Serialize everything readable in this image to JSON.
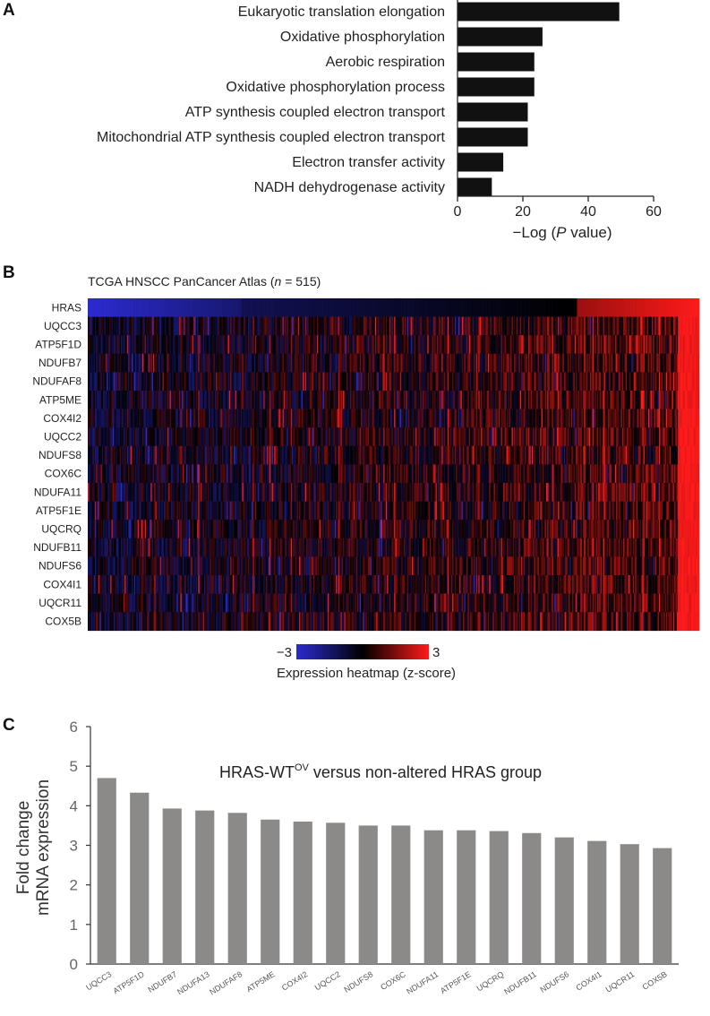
{
  "panels": {
    "a": "A",
    "b": "B",
    "c": "C"
  },
  "chart_data": [
    {
      "type": "bar",
      "orientation": "horizontal",
      "categories": [
        "Eukaryotic translation elongation",
        "Oxidative phosphorylation",
        "Aerobic respiration",
        "Oxidative phosphorylation process",
        "ATP synthesis coupled electron transport",
        "Mitochondrial ATP synthesis coupled electron transport",
        "Electron transfer activity",
        "NADH dehydrogenase activity"
      ],
      "values": [
        49.5,
        26,
        23.5,
        23.5,
        21.5,
        21.5,
        14,
        10.5
      ],
      "xlim": [
        0,
        60
      ],
      "xticks": [
        "0",
        "20",
        "40",
        "60"
      ],
      "xlabel_pre": "−Log (",
      "xlabel_italic": "P",
      "xlabel_post": " value)",
      "bar_color": "#111111"
    },
    {
      "type": "heatmap",
      "title_pre": "TCGA HNSCC PanCancer Atlas (",
      "title_italic": "n",
      "title_post": " = 515)",
      "rows": [
        "HRAS",
        "UQCC3",
        "ATP5F1D",
        "NDUFB7",
        "NDUFAF8",
        "ATP5ME",
        "COX4I2",
        "UQCC2",
        "NDUFS8",
        "COX6C",
        "NDUFA11",
        "ATP5F1E",
        "UQCRQ",
        "NDUFB11",
        "NDUFS6",
        "COX4I1",
        "UQCR11",
        "COX5B"
      ],
      "n_samples": 515,
      "colorbar_min": "−3",
      "colorbar_max": "3",
      "colorbar_label": "Expression heatmap (z-score)",
      "colors": {
        "low": "#2b2bd0",
        "mid": "#000000",
        "high": "#ff1a1a"
      }
    },
    {
      "type": "bar",
      "title_pre": "HRAS-WT",
      "title_sup": "OV",
      "title_post": " versus non-altered HRAS group",
      "ylabel_line1": "Fold change",
      "ylabel_line2": "mRNA expression",
      "categories": [
        "UQCC3",
        "ATP5F1D",
        "NDUFB7",
        "NDUFA13",
        "NDUFAF8",
        "ATP5ME",
        "COX4I2",
        "UQCC2",
        "NDUFS8",
        "COX6C",
        "NDUFA11",
        "ATP5F1E",
        "UQCRQ",
        "NDUFB11",
        "NDUFS6",
        "COX4I1",
        "UQCR11",
        "COX5B"
      ],
      "values": [
        4.7,
        4.33,
        3.93,
        3.88,
        3.82,
        3.65,
        3.6,
        3.57,
        3.5,
        3.5,
        3.38,
        3.38,
        3.36,
        3.31,
        3.2,
        3.11,
        3.03,
        2.93
      ],
      "ylim": [
        0,
        6
      ],
      "yticks": [
        "0",
        "1",
        "2",
        "3",
        "4",
        "5",
        "6"
      ],
      "bar_color": "#8c8989"
    }
  ]
}
